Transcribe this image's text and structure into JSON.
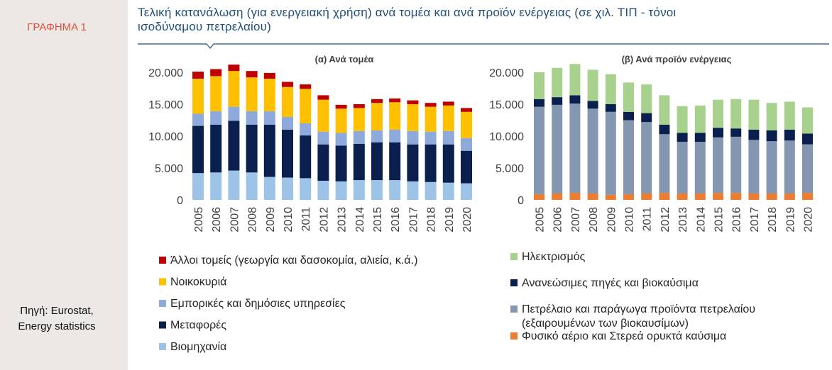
{
  "sidebar": {
    "figure_label": "ΓΡΑΦΗΜΑ 1",
    "source_line1": "Πηγή: Eurostat,",
    "source_line2": "Energy statistics"
  },
  "header": {
    "title_line1": "Τελική κατανάλωση (για ενεργειακή χρήση) ανά τομέα και ανά προϊόν ενέργειας (σε χιλ. ΤΙΠ - τόνοι",
    "title_line2": "ισοδύναμου πετρελαίου)"
  },
  "chart_data": [
    {
      "type": "bar",
      "stacked": true,
      "title": "(α) Ανά τομέα",
      "categories": [
        "2005",
        "2006",
        "2007",
        "2008",
        "2009",
        "2010",
        "2011",
        "2012",
        "2013",
        "2014",
        "2015",
        "2016",
        "2017",
        "2018",
        "2019",
        "2020"
      ],
      "ylim": [
        0,
        20000
      ],
      "yticks": [
        0,
        5000,
        10000,
        15000,
        20000
      ],
      "ytick_labels": [
        "0",
        "5.000",
        "10.000",
        "15.000",
        "20.000"
      ],
      "grid": false,
      "legend_position": "bottom",
      "series": [
        {
          "name": "Βιομηχανία",
          "color": "#9dc3e6",
          "values": [
            4200,
            4300,
            4600,
            4300,
            3600,
            3500,
            3400,
            3000,
            2900,
            3100,
            3100,
            3100,
            2900,
            2800,
            2700,
            2600
          ]
        },
        {
          "name": "Μεταφορές",
          "color": "#0b1f4f",
          "values": [
            7400,
            7500,
            7800,
            7500,
            8200,
            7500,
            6700,
            5700,
            5600,
            5700,
            5900,
            5900,
            5800,
            5900,
            6000,
            5100
          ]
        },
        {
          "name": "Εμπορικές και δημόσιες υπηρεσίες",
          "color": "#8ea9db",
          "values": [
            1900,
            2100,
            2200,
            2100,
            2100,
            2000,
            1900,
            2000,
            2000,
            2000,
            1900,
            2000,
            2100,
            2000,
            2100,
            2000
          ]
        },
        {
          "name": "Νοικοκυριά",
          "color": "#ffc000",
          "values": [
            5500,
            5500,
            5600,
            5300,
            5100,
            4700,
            5400,
            5000,
            3800,
            3600,
            4300,
            4300,
            4200,
            3900,
            4000,
            4100
          ]
        },
        {
          "name": "Άλλοι τομείς (γεωργία και δασοκομία, αλιεία, κ.ά.)",
          "color": "#c00000",
          "values": [
            1100,
            1100,
            1000,
            1000,
            900,
            800,
            700,
            700,
            600,
            600,
            600,
            600,
            600,
            600,
            600,
            600
          ]
        }
      ]
    },
    {
      "type": "bar",
      "stacked": true,
      "title": "(β) Ανά προϊόν ενέργειας",
      "categories": [
        "2005",
        "2006",
        "2007",
        "2008",
        "2009",
        "2010",
        "2011",
        "2012",
        "2013",
        "2014",
        "2015",
        "2016",
        "2017",
        "2018",
        "2019",
        "2020"
      ],
      "ylim": [
        0,
        20000
      ],
      "yticks": [
        0,
        5000,
        10000,
        15000,
        20000
      ],
      "ytick_labels": [
        "0",
        "5.000",
        "10.000",
        "15.000",
        "20.000"
      ],
      "grid": false,
      "legend_position": "bottom",
      "series": [
        {
          "name": "Φυσικό αέριο και Στερεά ορυκτά καύσιμα",
          "color": "#ed7d31",
          "values": [
            900,
            1000,
            1100,
            1000,
            800,
            900,
            1000,
            1100,
            1000,
            1000,
            1100,
            1100,
            1000,
            1000,
            1000,
            1100
          ]
        },
        {
          "name": "Πετρέλαιο και παράγωγα προϊόντα πετρελαίου (εξαιρουμένων των βιοκαυσίμων)",
          "color": "#8496b0",
          "values": [
            13700,
            13900,
            14000,
            13300,
            13000,
            11600,
            11200,
            9200,
            8100,
            8100,
            8700,
            8800,
            8400,
            8200,
            8300,
            7600
          ]
        },
        {
          "name": "Ανανεώσιμες πηγές και βιοκαύσιμα",
          "color": "#0b1f4f",
          "values": [
            1200,
            1200,
            1300,
            1200,
            1200,
            1300,
            1400,
            1500,
            1400,
            1400,
            1500,
            1300,
            1600,
            1700,
            1700,
            1700
          ]
        },
        {
          "name": "Ηλεκτρισμός",
          "color": "#a9d18e",
          "values": [
            4200,
            4600,
            4900,
            4900,
            4700,
            4600,
            4500,
            4600,
            4200,
            4300,
            4400,
            4600,
            4700,
            4300,
            4400,
            4100
          ]
        }
      ]
    }
  ]
}
